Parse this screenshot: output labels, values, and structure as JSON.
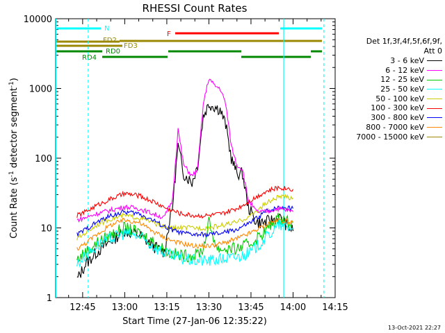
{
  "chart_data": {
    "type": "line",
    "title": "RHESSI Count Rates",
    "xlabel": "Start Time (27-Jan-06 12:35:22)",
    "ylabel_main": "Count Rate (s",
    "ylabel_sup": "-1",
    "ylabel_mid": " detector segment",
    "ylabel_sup2": "-1",
    "ylabel_end": ")",
    "xlim": [
      "12:35:22",
      "14:15:00"
    ],
    "ylim": [
      1,
      10000
    ],
    "yscale": "log",
    "xticks": [
      "12:45",
      "13:00",
      "13:15",
      "13:30",
      "13:45",
      "14:00",
      "14:15"
    ],
    "yticks": [
      "1",
      "10",
      "100",
      "1000",
      "10000"
    ],
    "legend_title": [
      "Det 1f,3f,4f,5f,6f,9f,",
      "Att 0"
    ],
    "legend_position": "right",
    "series": [
      {
        "name": "3 - 6 keV",
        "color": "#000000",
        "x": [
          "12:43",
          "12:46",
          "12:50",
          "12:55",
          "13:00",
          "13:05",
          "13:10",
          "13:14",
          "13:17",
          "13:19",
          "13:21",
          "13:24",
          "13:26",
          "13:28",
          "13:30",
          "13:32",
          "13:34",
          "13:36",
          "13:38",
          "13:40",
          "13:42",
          "13:44",
          "13:47",
          "13:50",
          "13:55",
          "14:00"
        ],
        "y": [
          1.8,
          3,
          4.5,
          6.5,
          9,
          8,
          5.5,
          4.5,
          20,
          150,
          60,
          45,
          80,
          400,
          600,
          550,
          500,
          300,
          100,
          60,
          60,
          20,
          12,
          12,
          14,
          9
        ]
      },
      {
        "name": "6 - 12 keV",
        "color": "#ff00ff",
        "x": [
          "12:43",
          "12:46",
          "12:50",
          "12:55",
          "13:00",
          "13:05",
          "13:10",
          "13:14",
          "13:17",
          "13:19",
          "13:21",
          "13:24",
          "13:26",
          "13:28",
          "13:30",
          "13:32",
          "13:34",
          "13:36",
          "13:38",
          "13:40",
          "13:42",
          "13:44",
          "13:47",
          "13:50",
          "13:55",
          "14:00"
        ],
        "y": [
          13,
          14,
          16,
          18,
          20,
          19,
          16,
          14,
          25,
          260,
          80,
          55,
          70,
          600,
          1400,
          1100,
          1000,
          600,
          150,
          80,
          70,
          25,
          17,
          17,
          19,
          17
        ]
      },
      {
        "name": "12 - 25 keV",
        "color": "#00cc00",
        "x": [
          "12:43",
          "12:46",
          "12:50",
          "12:55",
          "13:00",
          "13:05",
          "13:10",
          "13:15",
          "13:20",
          "13:25",
          "13:28",
          "13:30",
          "13:33",
          "13:36",
          "13:40",
          "13:45",
          "13:50",
          "13:55",
          "14:00"
        ],
        "y": [
          3.5,
          4.5,
          6,
          8,
          10,
          8.5,
          6.5,
          4.5,
          4,
          4,
          5,
          12,
          5,
          5,
          5,
          6,
          9,
          14,
          12
        ]
      },
      {
        "name": "25 - 50 keV",
        "color": "#00ffff",
        "x": [
          "12:43",
          "12:46",
          "12:50",
          "12:55",
          "13:00",
          "13:05",
          "13:10",
          "13:15",
          "13:20",
          "13:25",
          "13:30",
          "13:35",
          "13:40",
          "13:45",
          "13:50",
          "13:55",
          "14:00"
        ],
        "y": [
          3,
          4,
          5.5,
          7,
          8.5,
          7.5,
          5.5,
          4.2,
          3.6,
          3.4,
          3.4,
          3.6,
          3.8,
          4.5,
          7,
          11,
          10
        ]
      },
      {
        "name": "50 - 100 keV",
        "color": "#cccc00",
        "x": [
          "12:43",
          "12:46",
          "12:50",
          "12:55",
          "13:00",
          "13:05",
          "13:10",
          "13:15",
          "13:20",
          "13:25",
          "13:30",
          "13:35",
          "13:40",
          "13:45",
          "13:50",
          "13:55",
          "14:00"
        ],
        "y": [
          7,
          8.5,
          11,
          13.5,
          15,
          14,
          12,
          10,
          10,
          10,
          10,
          11,
          12,
          15,
          22,
          28,
          27
        ]
      },
      {
        "name": "100 - 300 keV",
        "color": "#ff0000",
        "x": [
          "12:43",
          "12:46",
          "12:50",
          "12:55",
          "13:00",
          "13:05",
          "13:10",
          "13:15",
          "13:20",
          "13:25",
          "13:30",
          "13:35",
          "13:40",
          "13:45",
          "13:50",
          "13:55",
          "14:00"
        ],
        "y": [
          15,
          17,
          21,
          26,
          31,
          29,
          24,
          19,
          16,
          15,
          15,
          16,
          19,
          25,
          33,
          38,
          36
        ]
      },
      {
        "name": "300 - 800 keV",
        "color": "#0000ff",
        "x": [
          "12:43",
          "12:46",
          "12:50",
          "12:55",
          "13:00",
          "13:05",
          "13:10",
          "13:15",
          "13:20",
          "13:25",
          "13:30",
          "13:35",
          "13:40",
          "13:45",
          "13:50",
          "13:55",
          "14:00"
        ],
        "y": [
          8,
          9.5,
          12,
          15,
          17,
          16,
          13,
          10,
          8.5,
          8,
          8,
          8.5,
          9.5,
          12,
          17,
          20,
          19
        ]
      },
      {
        "name": "800 - 7000 keV",
        "color": "#ff8800",
        "x": [
          "12:43",
          "12:46",
          "12:50",
          "12:55",
          "13:00",
          "13:05",
          "13:10",
          "13:15",
          "13:20",
          "13:25",
          "13:30",
          "13:35",
          "13:40",
          "13:45",
          "13:50",
          "13:55",
          "14:00"
        ],
        "y": [
          5,
          6,
          8,
          11,
          13,
          12,
          9,
          7,
          6,
          5.5,
          5.5,
          6,
          7,
          8.5,
          11,
          13,
          12
        ]
      },
      {
        "name": "7000 - 15000 keV",
        "color": "#998800",
        "x": [],
        "y": []
      }
    ],
    "annotations": [
      {
        "text": "N",
        "color": "#00ffff"
      },
      {
        "text": "FD2",
        "color": "#998800"
      },
      {
        "text": "FD3",
        "color": "#998800"
      },
      {
        "text": "RD0",
        "color": "#008800"
      },
      {
        "text": "RD4",
        "color": "#008800"
      },
      {
        "text": "F",
        "color": "#ff0000"
      }
    ],
    "vertical_markers": [
      "12:35:30",
      "12:47:00",
      "13:56:40",
      "14:11:00"
    ]
  },
  "timestamp": "13-Oct-2021 22:27"
}
